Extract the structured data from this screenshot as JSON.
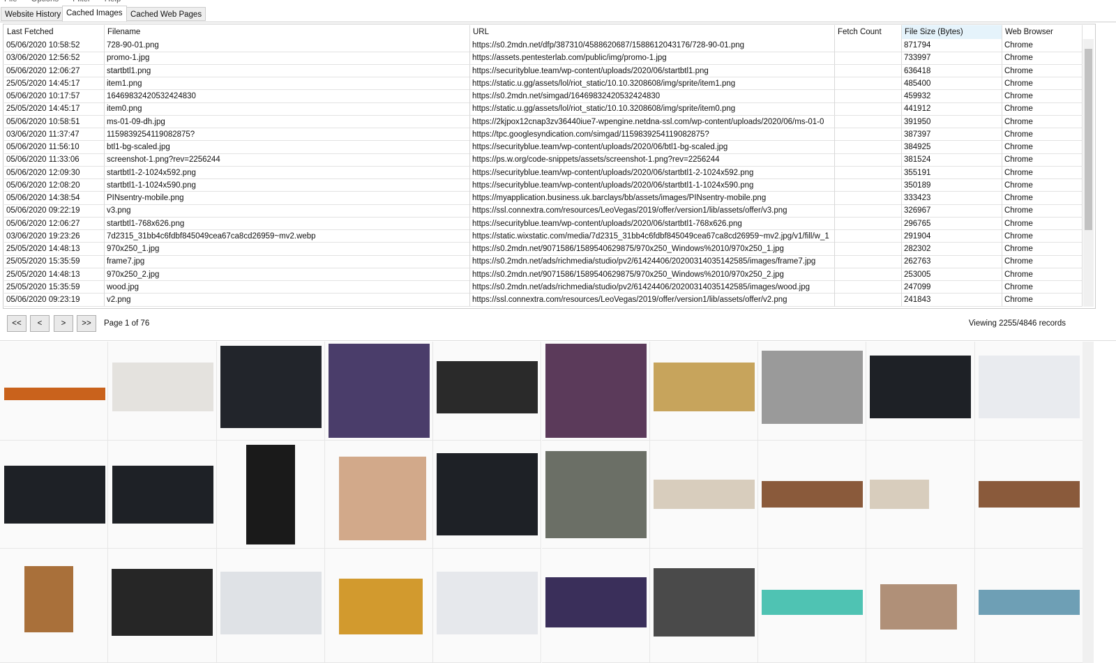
{
  "menu": [
    "File",
    "Options",
    "Filter",
    "Help"
  ],
  "tabs": [
    "Website History",
    "Cached Images",
    "Cached Web Pages"
  ],
  "table": {
    "columns": [
      "Last Fetched",
      "Filename",
      "URL",
      "Fetch Count",
      "File Size (Bytes)",
      "Web Browser"
    ],
    "rows": [
      {
        "last_fetched": "05/06/2020 10:58:52",
        "filename": "728-90-01.png",
        "url": "https://s0.2mdn.net/dfp/387310/4588620687/1588612043176/728-90-01.png",
        "file_size": "871794",
        "web_browser": "Chrome"
      },
      {
        "last_fetched": "03/06/2020 12:56:52",
        "filename": "promo-1.jpg",
        "url": "https://assets.pentesterlab.com/public/img/promo-1.jpg",
        "file_size": "733997",
        "web_browser": "Chrome"
      },
      {
        "last_fetched": "05/06/2020 12:06:27",
        "filename": "startbtl1.png",
        "url": "https://securityblue.team/wp-content/uploads/2020/06/startbtl1.png",
        "file_size": "636418",
        "web_browser": "Chrome"
      },
      {
        "last_fetched": "25/05/2020 14:45:17",
        "filename": "item1.png",
        "url": "https://static.u.gg/assets/lol/riot_static/10.10.3208608/img/sprite/item1.png",
        "file_size": "485400",
        "web_browser": "Chrome"
      },
      {
        "last_fetched": "05/06/2020 10:17:57",
        "filename": "16469832420532424830",
        "url": "https://s0.2mdn.net/simgad/16469832420532424830",
        "file_size": "459932",
        "web_browser": "Chrome"
      },
      {
        "last_fetched": "25/05/2020 14:45:17",
        "filename": "item0.png",
        "url": "https://static.u.gg/assets/lol/riot_static/10.10.3208608/img/sprite/item0.png",
        "file_size": "441912",
        "web_browser": "Chrome"
      },
      {
        "last_fetched": "05/06/2020 10:58:51",
        "filename": "ms-01-09-dh.jpg",
        "url": "https://2kjpox12cnap3zv36440iue7-wpengine.netdna-ssl.com/wp-content/uploads/2020/06/ms-01-0",
        "file_size": "391950",
        "web_browser": "Chrome"
      },
      {
        "last_fetched": "03/06/2020 11:37:47",
        "filename": "1159839254119082875?",
        "url": "https://tpc.googlesyndication.com/simgad/1159839254119082875?",
        "file_size": "387397",
        "web_browser": "Chrome"
      },
      {
        "last_fetched": "05/06/2020 11:56:10",
        "filename": "btl1-bg-scaled.jpg",
        "url": "https://securityblue.team/wp-content/uploads/2020/06/btl1-bg-scaled.jpg",
        "file_size": "384925",
        "web_browser": "Chrome"
      },
      {
        "last_fetched": "05/06/2020 11:33:06",
        "filename": "screenshot-1.png?rev=2256244",
        "url": "https://ps.w.org/code-snippets/assets/screenshot-1.png?rev=2256244",
        "file_size": "381524",
        "web_browser": "Chrome"
      },
      {
        "last_fetched": "05/06/2020 12:09:30",
        "filename": "startbtl1-2-1024x592.png",
        "url": "https://securityblue.team/wp-content/uploads/2020/06/startbtl1-2-1024x592.png",
        "file_size": "355191",
        "web_browser": "Chrome"
      },
      {
        "last_fetched": "05/06/2020 12:08:20",
        "filename": "startbtl1-1-1024x590.png",
        "url": "https://securityblue.team/wp-content/uploads/2020/06/startbtl1-1-1024x590.png",
        "file_size": "350189",
        "web_browser": "Chrome"
      },
      {
        "last_fetched": "05/06/2020 14:38:54",
        "filename": "PINsentry-mobile.png",
        "url": "https://myapplication.business.uk.barclays/bb/assets/images/PINsentry-mobile.png",
        "file_size": "333423",
        "web_browser": "Chrome"
      },
      {
        "last_fetched": "05/06/2020 09:22:19",
        "filename": "v3.png",
        "url": "https://ssl.connextra.com/resources/LeoVegas/2019/offer/version1/lib/assets/offer/v3.png",
        "file_size": "326967",
        "web_browser": "Chrome"
      },
      {
        "last_fetched": "05/06/2020 12:06:27",
        "filename": "startbtl1-768x626.png",
        "url": "https://securityblue.team/wp-content/uploads/2020/06/startbtl1-768x626.png",
        "file_size": "296765",
        "web_browser": "Chrome"
      },
      {
        "last_fetched": "03/06/2020 19:23:26",
        "filename": "7d2315_31bb4c6fdbf845049cea67ca8cd26959~mv2.webp",
        "url": "https://static.wixstatic.com/media/7d2315_31bb4c6fdbf845049cea67ca8cd26959~mv2.jpg/v1/fill/w_1",
        "file_size": "291904",
        "web_browser": "Chrome"
      },
      {
        "last_fetched": "25/05/2020 14:48:13",
        "filename": "970x250_1.jpg",
        "url": "https://s0.2mdn.net/9071586/1589540629875/970x250_Windows%2010/970x250_1.jpg",
        "file_size": "282302",
        "web_browser": "Chrome"
      },
      {
        "last_fetched": "25/05/2020 15:35:59",
        "filename": "frame7.jpg",
        "url": "https://s0.2mdn.net/ads/richmedia/studio/pv2/61424406/20200314035142585/images/frame7.jpg",
        "file_size": "262763",
        "web_browser": "Chrome"
      },
      {
        "last_fetched": "25/05/2020 14:48:13",
        "filename": "970x250_2.jpg",
        "url": "https://s0.2mdn.net/9071586/1589540629875/970x250_Windows%2010/970x250_2.jpg",
        "file_size": "253005",
        "web_browser": "Chrome"
      },
      {
        "last_fetched": "25/05/2020 15:35:59",
        "filename": "wood.jpg",
        "url": "https://s0.2mdn.net/ads/richmedia/studio/pv2/61424406/20200314035142585/images/wood.jpg",
        "file_size": "247099",
        "web_browser": "Chrome"
      },
      {
        "last_fetched": "05/06/2020 09:23:19",
        "filename": "v2.png",
        "url": "https://ssl.connextra.com/resources/LeoVegas/2019/offer/version1/lib/assets/offer/v2.png",
        "file_size": "241843",
        "web_browser": "Chrome"
      }
    ]
  },
  "pager": {
    "first": "<<",
    "prev": "<",
    "next": ">",
    "last": ">>",
    "page": "Page 1 of 76",
    "records": "Viewing 2255/4846 records"
  }
}
